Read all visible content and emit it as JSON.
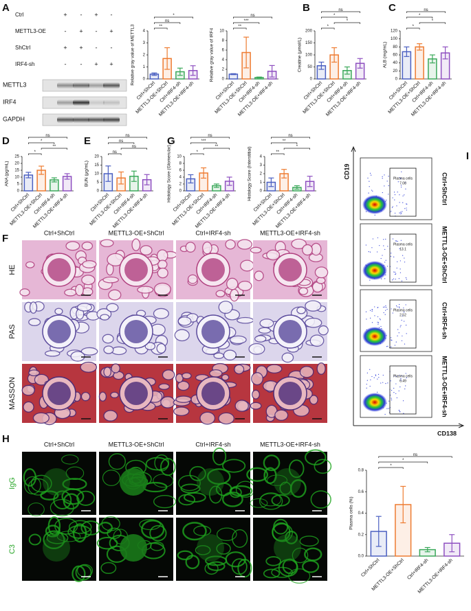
{
  "panel_labels": [
    "A",
    "B",
    "C",
    "D",
    "E",
    "G",
    "F",
    "H",
    "I"
  ],
  "western_blot": {
    "treatments": [
      {
        "label": "Ctrl",
        "marks": [
          "+",
          "-",
          "+",
          "-"
        ]
      },
      {
        "label": "METTL3-OE",
        "marks": [
          "-",
          "+",
          "-",
          "+"
        ]
      },
      {
        "label": "ShCtrl",
        "marks": [
          "+",
          "+",
          "-",
          "-"
        ]
      },
      {
        "label": "IRF4-sh",
        "marks": [
          "-",
          "-",
          "+",
          "+"
        ]
      }
    ],
    "bands": [
      "METTL3",
      "IRF4",
      "GAPDH"
    ]
  },
  "chart_data": [
    {
      "type": "bar",
      "y_label": "Relative gray value of METTL3",
      "categories": [
        "Ctrl+ShCtrl",
        "METTL3-OE+ShCtrl",
        "Ctrl+IRF4-sh",
        "METTL3-OE+IRF4-sh"
      ],
      "colors": [
        "#4a5fc1",
        "#ee7b30",
        "#3aa85a",
        "#8e4fc0"
      ],
      "values": [
        0.4,
        1.7,
        0.6,
        0.7
      ],
      "errors": [
        0.1,
        0.9,
        0.3,
        0.4
      ],
      "ylim": [
        0,
        4
      ],
      "yticks": [
        0,
        1,
        2,
        3,
        4
      ],
      "comparisons": [
        {
          "groups": [
            0,
            3
          ],
          "label": "*"
        },
        {
          "groups": [
            0,
            2
          ],
          "label": "ns"
        },
        {
          "groups": [
            0,
            1
          ],
          "label": "**"
        }
      ]
    },
    {
      "type": "bar",
      "y_label": "Relative gray value of IRF4",
      "categories": [
        "Ctrl+ShCtrl",
        "METTL3-OE+ShCtrl",
        "Ctrl+IRF4-sh",
        "METTL3-OE+IRF4-sh"
      ],
      "colors": [
        "#4a5fc1",
        "#ee7b30",
        "#3aa85a",
        "#8e4fc0"
      ],
      "values": [
        1,
        5.5,
        0.3,
        1.6
      ],
      "errors": [
        0.1,
        3.2,
        0.1,
        1.2
      ],
      "ylim": [
        0,
        10
      ],
      "yticks": [
        0,
        2,
        4,
        6,
        8,
        10
      ],
      "comparisons": [
        {
          "groups": [
            0,
            3
          ],
          "label": "ns"
        },
        {
          "groups": [
            0,
            2
          ],
          "label": "***"
        },
        {
          "groups": [
            0,
            1
          ],
          "label": "**"
        }
      ]
    },
    {
      "type": "bar",
      "y_label": "Creatine (μmol/L)",
      "categories": [
        "Ctrl+ShCtrl",
        "METTL3-OE+ShCtrl",
        "Ctrl+IRF4-sh",
        "METTL3-OE+IRF4-sh"
      ],
      "colors": [
        "#4a5fc1",
        "#ee7b30",
        "#3aa85a",
        "#8e4fc0"
      ],
      "values": [
        55,
        100,
        35,
        65
      ],
      "errors": [
        15,
        30,
        15,
        20
      ],
      "ylim": [
        0,
        200
      ],
      "yticks": [
        0,
        50,
        100,
        150,
        200
      ],
      "comparisons": [
        {
          "groups": [
            0,
            3
          ],
          "label": "ns"
        },
        {
          "groups": [
            0,
            2
          ],
          "label": "*"
        },
        {
          "groups": [
            1,
            3
          ],
          "label": "*"
        },
        {
          "groups": [
            0,
            1
          ],
          "label": "*"
        }
      ]
    },
    {
      "type": "bar",
      "y_label": "ALB (mg/mL)",
      "categories": [
        "Ctrl+ShCtrl",
        "METTL3-OE+ShCtrl",
        "Ctrl+IRF4-sh",
        "METTL3-OE+IRF4-sh"
      ],
      "colors": [
        "#4a5fc1",
        "#ee7b30",
        "#3aa85a",
        "#8e4fc0"
      ],
      "values": [
        68,
        80,
        50,
        65
      ],
      "errors": [
        12,
        8,
        10,
        15
      ],
      "ylim": [
        0,
        120
      ],
      "yticks": [
        0,
        20,
        40,
        60,
        80,
        100,
        120
      ],
      "comparisons": [
        {
          "groups": [
            0,
            3
          ],
          "label": "ns"
        },
        {
          "groups": [
            0,
            2
          ],
          "label": "*"
        },
        {
          "groups": [
            1,
            3
          ],
          "label": "*"
        },
        {
          "groups": [
            0,
            1
          ],
          "label": "*"
        }
      ]
    },
    {
      "type": "bar",
      "y_label": "ANA (pg/mL)",
      "categories": [
        "Ctrl+ShCtrl",
        "METTL3-OE+ShCtrl",
        "Ctrl+IRF4-sh",
        "METTL3-OE+IRF4-sh"
      ],
      "colors": [
        "#4a5fc1",
        "#ee7b30",
        "#3aa85a",
        "#8e4fc0"
      ],
      "values": [
        11.5,
        15,
        8,
        10.5
      ],
      "errors": [
        2,
        3,
        1.5,
        2
      ],
      "ylim": [
        0,
        25
      ],
      "yticks": [
        0,
        5,
        10,
        15,
        20,
        25
      ],
      "comparisons": [
        {
          "groups": [
            0,
            3
          ],
          "label": "ns"
        },
        {
          "groups": [
            0,
            2
          ],
          "label": "*"
        },
        {
          "groups": [
            1,
            3
          ],
          "label": "**"
        },
        {
          "groups": [
            0,
            1
          ],
          "label": "*"
        }
      ]
    },
    {
      "type": "bar",
      "y_label": "BUN (μg/mL)",
      "categories": [
        "Ctrl+ShCtrl",
        "METTL3-OE+ShCtrl",
        "Ctrl+IRF4-sh",
        "METTL3-OE+IRF4-sh"
      ],
      "colors": [
        "#4a5fc1",
        "#ee7b30",
        "#3aa85a",
        "#8e4fc0"
      ],
      "values": [
        10,
        7.5,
        8.5,
        6.5
      ],
      "errors": [
        4.5,
        3.5,
        3,
        3
      ],
      "ylim": [
        0,
        20
      ],
      "yticks": [
        0,
        5,
        10,
        15,
        20
      ],
      "comparisons": [
        {
          "groups": [
            0,
            3
          ],
          "label": "ns"
        },
        {
          "groups": [
            0,
            2
          ],
          "label": "ns"
        },
        {
          "groups": [
            1,
            3
          ],
          "label": "ns"
        },
        {
          "groups": [
            0,
            1
          ],
          "label": "ns"
        }
      ]
    },
    {
      "type": "bar",
      "y_label": "Histology Score (Glomerular)",
      "categories": [
        "Ctrl+ShCtrl",
        "METTL3-OE+ShCtrl",
        "Ctrl+IRF4-sh",
        "METTL3-OE+IRF4-sh"
      ],
      "colors": [
        "#4a5fc1",
        "#ee7b30",
        "#3aa85a",
        "#8e4fc0"
      ],
      "values": [
        3.5,
        5.2,
        1.5,
        2.8
      ],
      "errors": [
        1.2,
        1.5,
        0.5,
        1.2
      ],
      "ylim": [
        0,
        10
      ],
      "yticks": [
        0,
        2,
        4,
        6,
        8,
        10
      ],
      "comparisons": [
        {
          "groups": [
            0,
            3
          ],
          "label": "ns"
        },
        {
          "groups": [
            0,
            2
          ],
          "label": "***"
        },
        {
          "groups": [
            1,
            3
          ],
          "label": "**"
        },
        {
          "groups": [
            0,
            1
          ],
          "label": "*"
        }
      ]
    },
    {
      "type": "bar",
      "y_label": "Histology Score (Interstitial)",
      "categories": [
        "Ctrl+ShCtrl",
        "METTL3-OE+ShCtrl",
        "Ctrl+IRF4-sh",
        "METTL3-OE+IRF4-sh"
      ],
      "colors": [
        "#4a5fc1",
        "#ee7b30",
        "#3aa85a",
        "#8e4fc0"
      ],
      "values": [
        1,
        2,
        0.4,
        1.1
      ],
      "errors": [
        0.5,
        0.5,
        0.2,
        0.6
      ],
      "ylim": [
        0,
        4
      ],
      "yticks": [
        0,
        1,
        2,
        3,
        4
      ],
      "comparisons": [
        {
          "groups": [
            0,
            3
          ],
          "label": "ns"
        },
        {
          "groups": [
            0,
            2
          ],
          "label": "**"
        },
        {
          "groups": [
            1,
            3
          ],
          "label": "*"
        },
        {
          "groups": [
            0,
            1
          ],
          "label": "**"
        }
      ]
    },
    {
      "type": "bar",
      "y_label": "Plasma cells (%)",
      "categories": [
        "Ctrl+ShCtrl",
        "METTL3-OE+ShCtrl",
        "Ctrl+IRF4-sh",
        "METTL3-OE+IRF4-sh"
      ],
      "colors": [
        "#4a5fc1",
        "#ee7b30",
        "#3aa85a",
        "#8e4fc0"
      ],
      "values": [
        0.23,
        0.48,
        0.06,
        0.12
      ],
      "errors": [
        0.14,
        0.17,
        0.02,
        0.08
      ],
      "ylim": [
        0,
        0.8
      ],
      "yticks": [
        {
          "value": 0,
          "label": "0.0"
        },
        0.2,
        0.4,
        0.6,
        0.8
      ],
      "comparisons": [
        {
          "groups": [
            0,
            3
          ],
          "label": "ns"
        },
        {
          "groups": [
            0,
            2
          ],
          "label": "*"
        },
        {
          "groups": [
            0,
            1
          ],
          "label": "*"
        }
      ]
    }
  ],
  "histology": {
    "columns": [
      "Ctrl+ShCtrl",
      "METTL3-OE+ShCtrl",
      "Ctrl+IRF4-sh",
      "METTL3-OE+IRF4-sh"
    ],
    "rows": [
      "HE",
      "PAS",
      "MASSON"
    ]
  },
  "immunofluorescence": {
    "columns": [
      "Ctrl+ShCtrl",
      "METTL3-OE+ShCtrl",
      "Ctrl+IRF4-sh",
      "METTL3-OE+IRF4-sh"
    ],
    "rows": [
      "IgG",
      "C3"
    ]
  },
  "flow_cytometry": {
    "y_axis": "CD19",
    "x_axis": "CD138",
    "gate_label": "Plasma cells",
    "samples": [
      {
        "name": "Ctrl+ShCtrl",
        "value": 7.08
      },
      {
        "name": "METTL3-OE+ShCtrl",
        "value": 13.1
      },
      {
        "name": "Ctrl+IRF4-sh",
        "value": 2.52
      },
      {
        "name": "METTL3-OE+IRF4-sh",
        "value": 6.49
      }
    ]
  }
}
